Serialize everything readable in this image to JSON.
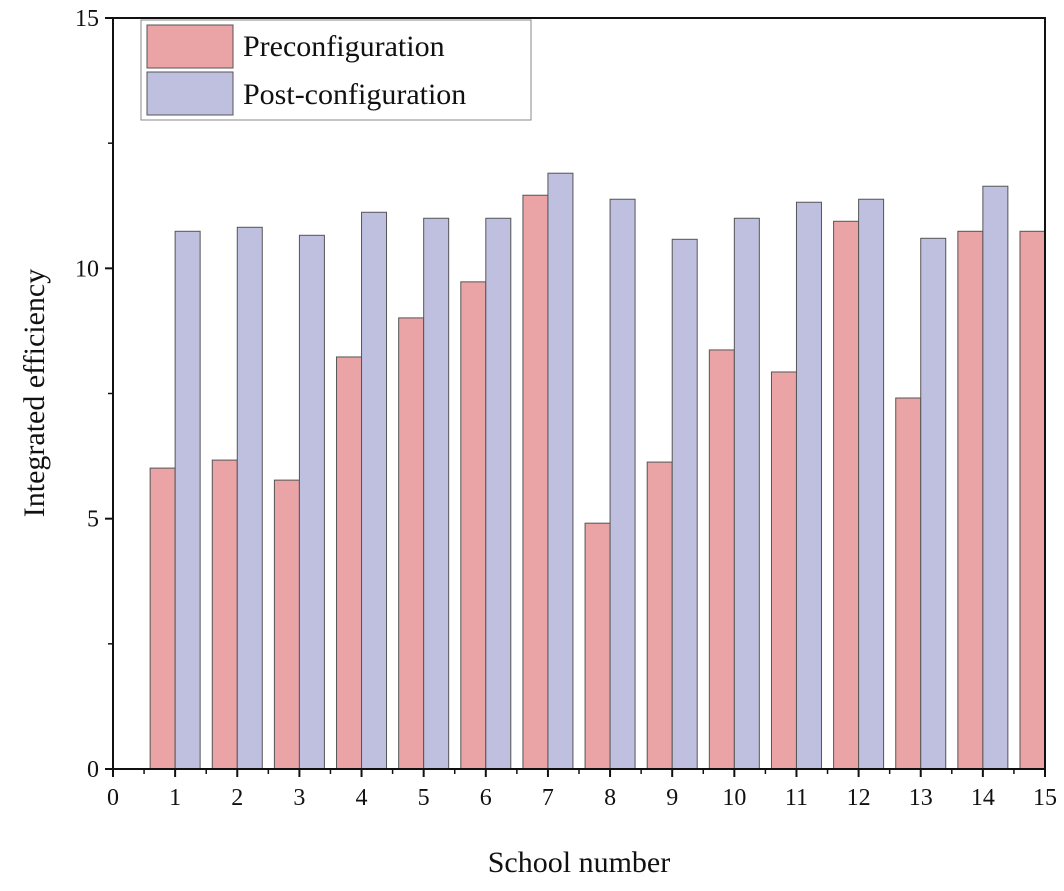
{
  "chart_data": {
    "type": "bar",
    "title": "",
    "xlabel": "School number",
    "ylabel": "Integrated efficiency",
    "xlim": [
      0,
      15
    ],
    "ylim": [
      0,
      15
    ],
    "x_ticks": [
      "0",
      "1",
      "2",
      "3",
      "4",
      "5",
      "6",
      "7",
      "8",
      "9",
      "10",
      "11",
      "12",
      "13",
      "14",
      "15"
    ],
    "y_ticks": [
      "0",
      "5",
      "10",
      "15"
    ],
    "grid": false,
    "legend_position": "top-left",
    "categories": [
      1,
      2,
      3,
      4,
      5,
      6,
      7,
      8,
      9,
      10,
      11,
      12,
      13,
      14,
      15
    ],
    "series": [
      {
        "name": "Preconfiguration",
        "color": "#EBA4A6",
        "values": [
          6.01,
          6.17,
          5.77,
          8.23,
          9.01,
          9.73,
          11.46,
          4.91,
          6.13,
          8.37,
          7.93,
          10.94,
          7.41,
          10.74,
          10.74
        ]
      },
      {
        "name": "Post-configuration",
        "color": "#BFBFE0",
        "values": [
          10.74,
          10.82,
          10.66,
          11.12,
          11.0,
          11.0,
          11.9,
          11.38,
          10.58,
          11.0,
          11.32,
          11.38,
          10.6,
          11.64,
          null
        ]
      }
    ]
  }
}
